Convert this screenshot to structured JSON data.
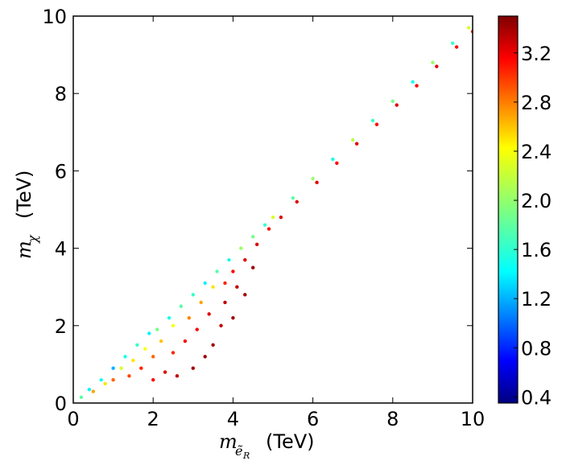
{
  "chart_data": {
    "type": "scatter",
    "title": "",
    "xlabel": {
      "symbol": "m",
      "subscript": "ẽ",
      "subsubscript": "R",
      "unit": "(TeV)"
    },
    "ylabel": {
      "symbol": "m",
      "subscript": "χ",
      "unit": "(TeV)"
    },
    "xlim": [
      0,
      10
    ],
    "ylim": [
      0,
      10
    ],
    "xticks": [
      0,
      2,
      4,
      6,
      8,
      10
    ],
    "yticks": [
      0,
      2,
      4,
      6,
      8,
      10
    ],
    "grid": false,
    "colorbar": {
      "colormap": "jet",
      "range": [
        0.35,
        3.5
      ],
      "ticks": [
        "0.4",
        "0.8",
        "1.2",
        "1.6",
        "2.0",
        "2.4",
        "2.8",
        "3.2"
      ],
      "tick_values": [
        0.4,
        0.8,
        1.2,
        1.6,
        2.0,
        2.4,
        2.8,
        3.2
      ]
    },
    "series": [
      {
        "description_of_region": "dense band of points just below the diagonal m_chi = m_e; points near the diagonal have low-to-mid color values, points farther below are high (red)",
        "points": [
          [
            0.2,
            0.15,
            1.8
          ],
          [
            0.4,
            0.35,
            1.5
          ],
          [
            0.5,
            0.3,
            2.6
          ],
          [
            0.7,
            0.6,
            1.6
          ],
          [
            0.8,
            0.5,
            2.4
          ],
          [
            1.0,
            0.9,
            1.3
          ],
          [
            1.0,
            0.6,
            2.8
          ],
          [
            1.2,
            0.9,
            2.2
          ],
          [
            1.3,
            1.2,
            1.6
          ],
          [
            1.4,
            0.7,
            2.9
          ],
          [
            1.5,
            1.1,
            2.4
          ],
          [
            1.6,
            1.5,
            1.7
          ],
          [
            1.7,
            0.9,
            3.0
          ],
          [
            1.8,
            1.4,
            2.3
          ],
          [
            1.9,
            1.8,
            1.5
          ],
          [
            2.0,
            0.6,
            3.1
          ],
          [
            2.0,
            1.2,
            2.8
          ],
          [
            2.1,
            1.9,
            1.9
          ],
          [
            2.2,
            1.6,
            2.5
          ],
          [
            2.3,
            0.8,
            3.2
          ],
          [
            2.4,
            2.2,
            1.6
          ],
          [
            2.5,
            1.3,
            3.0
          ],
          [
            2.5,
            2.0,
            2.3
          ],
          [
            2.6,
            0.7,
            3.3
          ],
          [
            2.7,
            2.5,
            1.8
          ],
          [
            2.8,
            1.6,
            3.1
          ],
          [
            2.9,
            2.2,
            2.7
          ],
          [
            3.0,
            0.9,
            3.4
          ],
          [
            3.0,
            2.8,
            1.7
          ],
          [
            3.1,
            1.9,
            3.1
          ],
          [
            3.2,
            2.6,
            2.6
          ],
          [
            3.3,
            1.2,
            3.4
          ],
          [
            3.3,
            3.1,
            1.5
          ],
          [
            3.4,
            2.3,
            3.2
          ],
          [
            3.5,
            3.0,
            2.4
          ],
          [
            3.5,
            1.5,
            3.4
          ],
          [
            3.6,
            3.4,
            1.8
          ],
          [
            3.7,
            2.0,
            3.3
          ],
          [
            3.8,
            3.1,
            3.0
          ],
          [
            3.8,
            2.6,
            3.3
          ],
          [
            3.9,
            3.7,
            1.6
          ],
          [
            4.0,
            2.2,
            3.4
          ],
          [
            4.0,
            3.4,
            3.1
          ],
          [
            4.1,
            3.0,
            3.3
          ],
          [
            4.2,
            4.0,
            2.0
          ],
          [
            4.3,
            2.8,
            3.4
          ],
          [
            4.3,
            3.7,
            3.2
          ],
          [
            4.5,
            4.3,
            1.9
          ],
          [
            4.5,
            3.5,
            3.4
          ],
          [
            4.6,
            4.1,
            3.2
          ],
          [
            4.8,
            4.6,
            1.7
          ],
          [
            4.9,
            4.5,
            3.1
          ],
          [
            5.0,
            4.8,
            2.2
          ],
          [
            5.2,
            4.8,
            3.2
          ],
          [
            5.5,
            5.3,
            1.8
          ],
          [
            5.6,
            5.2,
            3.2
          ],
          [
            6.0,
            5.8,
            2.0
          ],
          [
            6.1,
            5.7,
            3.2
          ],
          [
            6.5,
            6.3,
            1.6
          ],
          [
            6.6,
            6.2,
            3.1
          ],
          [
            7.0,
            6.8,
            2.1
          ],
          [
            7.1,
            6.7,
            3.2
          ],
          [
            7.5,
            7.3,
            1.7
          ],
          [
            7.6,
            7.2,
            3.1
          ],
          [
            8.0,
            7.8,
            1.9
          ],
          [
            8.1,
            7.7,
            3.2
          ],
          [
            8.5,
            8.3,
            1.6
          ],
          [
            8.6,
            8.2,
            3.1
          ],
          [
            9.0,
            8.8,
            2.0
          ],
          [
            9.1,
            8.7,
            3.2
          ],
          [
            9.5,
            9.3,
            1.7
          ],
          [
            9.6,
            9.2,
            3.1
          ],
          [
            9.9,
            9.7,
            2.2
          ],
          [
            10.0,
            9.6,
            3.0
          ]
        ]
      }
    ]
  }
}
